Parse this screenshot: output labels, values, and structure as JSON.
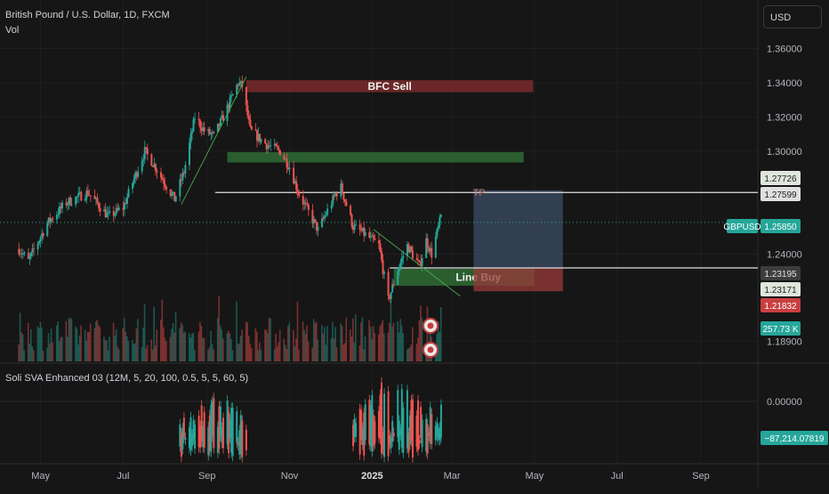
{
  "header": {
    "symbol_line": "British Pound / U.S. Dollar, 1D, FXCM",
    "volume_label": "Vol",
    "currency": "USD"
  },
  "indicator": {
    "label": "Soli SVA Enhanced 03 (12M, 5, 20, 100, 0.5, 5, 5, 60, 5)"
  },
  "colors": {
    "background": "#161616",
    "up": "#26a69a",
    "down": "#ef5350",
    "sell_zone": "#7a2a2a",
    "buy_zone": "#2e6b34",
    "target_zone": "#4a6383",
    "stop_zone": "#9a3a3a",
    "line": "#e0e0e0"
  },
  "chart_data": [
    {
      "type": "candlestick",
      "title": "British Pound / U.S. Dollar, 1D, FXCM",
      "y_axis": {
        "ylim": [
          1.181,
          1.3795
        ],
        "ticks": [
          "1.36000",
          "1.34000",
          "1.32000",
          "1.30000",
          "1.24000",
          "1.18900"
        ]
      },
      "x_axis": {
        "tick_labels": [
          "May",
          "Jul",
          "Sep",
          "Nov",
          "2025",
          "Mar",
          "May",
          "Jul",
          "Sep"
        ]
      },
      "price_path": {
        "start": "2024-04-15",
        "end": "2025-02-21",
        "close_waypoints": [
          [
            "2024-04-15",
            1.243
          ],
          [
            "2024-04-22",
            1.236
          ],
          [
            "2024-05-06",
            1.258
          ],
          [
            "2024-05-20",
            1.27
          ],
          [
            "2024-06-05",
            1.276
          ],
          [
            "2024-06-20",
            1.262
          ],
          [
            "2024-07-01",
            1.267
          ],
          [
            "2024-07-10",
            1.286
          ],
          [
            "2024-07-17",
            1.3
          ],
          [
            "2024-07-24",
            1.292
          ],
          [
            "2024-08-08",
            1.272
          ],
          [
            "2024-08-15",
            1.288
          ],
          [
            "2024-08-23",
            1.32
          ],
          [
            "2024-08-30",
            1.312
          ],
          [
            "2024-09-06",
            1.309
          ],
          [
            "2024-09-13",
            1.32
          ],
          [
            "2024-09-24",
            1.34
          ],
          [
            "2024-09-27",
            1.338
          ],
          [
            "2024-10-03",
            1.312
          ],
          [
            "2024-10-15",
            1.304
          ],
          [
            "2024-10-25",
            1.3
          ],
          [
            "2024-11-01",
            1.291
          ],
          [
            "2024-11-08",
            1.275
          ],
          [
            "2024-11-22",
            1.254
          ],
          [
            "2024-12-05",
            1.275
          ],
          [
            "2024-12-09",
            1.279
          ],
          [
            "2024-12-18",
            1.256
          ],
          [
            "2024-12-26",
            1.252
          ],
          [
            "2025-01-06",
            1.245
          ],
          [
            "2025-01-13",
            1.213
          ],
          [
            "2025-01-20",
            1.231
          ],
          [
            "2025-01-27",
            1.245
          ],
          [
            "2025-02-05",
            1.233
          ],
          [
            "2025-02-10",
            1.248
          ],
          [
            "2025-02-14",
            1.24
          ],
          [
            "2025-02-21",
            1.262
          ]
        ]
      },
      "price_labels": [
        {
          "text": "1.27726"
        },
        {
          "text": "1.27599"
        },
        {
          "text": "GBPUSD"
        },
        {
          "text": "1.25850"
        },
        {
          "text": "1.23195"
        },
        {
          "text": "1.23171"
        },
        {
          "text": "1.21832"
        },
        {
          "text": "257.73 K"
        }
      ],
      "zones": [
        {
          "name": "bfc-sell-zone",
          "label": "BFC Sell",
          "x0": "2024-09-30",
          "x1": "2025-04-30",
          "y0": 1.3345,
          "y1": 1.3415
        },
        {
          "name": "green-zone",
          "label": "",
          "x0": "2024-09-16",
          "x1": "2025-04-23",
          "y0": 1.2935,
          "y1": 1.2995
        },
        {
          "name": "line-buy-zone",
          "label": "Line Buy",
          "x0": "2025-01-17",
          "x1": "2025-05-01",
          "y0": 1.2215,
          "y1": 1.2315
        }
      ],
      "levels": [
        {
          "name": "tp-line",
          "label": "TP",
          "y": 1.27599,
          "x0": "2024-09-07",
          "x1": "2025-08-31"
        },
        {
          "name": "entry-line",
          "label": "",
          "y": 1.23195,
          "x0": "2025-01-14",
          "x1": "2025-08-31"
        }
      ],
      "position_tool": {
        "x0": "2025-03-17",
        "x1": "2025-05-22",
        "entry": 1.23195,
        "target": 1.27726,
        "stop": 1.21832
      },
      "trendlines": [
        {
          "from": [
            "2024-08-13",
            1.269
          ],
          "to": [
            "2024-09-30",
            1.3435
          ]
        },
        {
          "from": [
            "2025-01-02",
            1.2545
          ],
          "to": [
            "2025-03-07",
            1.2155
          ]
        }
      ]
    },
    {
      "type": "oscillator",
      "title": "Soli SVA Enhanced 03 (12M, 5, 20, 100, 0.5, 5, 5, 60, 5)",
      "y_axis": {
        "ticks": [
          "0.00000"
        ]
      },
      "current_value": "−87,214.07819"
    }
  ]
}
